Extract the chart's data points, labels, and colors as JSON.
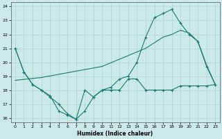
{
  "xlabel": "Humidex (Indice chaleur)",
  "bg_color": "#cce9e9",
  "grid_color": "#aad4d4",
  "line_color": "#1a7a6e",
  "xlim": [
    -0.5,
    23.5
  ],
  "ylim": [
    15.7,
    24.3
  ],
  "xticks": [
    0,
    1,
    2,
    3,
    4,
    5,
    6,
    7,
    8,
    9,
    10,
    11,
    12,
    13,
    14,
    15,
    16,
    17,
    18,
    19,
    20,
    21,
    22,
    23
  ],
  "yticks": [
    16,
    17,
    18,
    19,
    20,
    21,
    22,
    23,
    24
  ],
  "line1_x": [
    0,
    1,
    2,
    3,
    4,
    5,
    6,
    7,
    8,
    9,
    10,
    11,
    12,
    13,
    14,
    15,
    16,
    17,
    18,
    19,
    20,
    21,
    22,
    23
  ],
  "line1_y": [
    21.0,
    19.3,
    18.4,
    18.0,
    17.5,
    17.0,
    16.3,
    15.9,
    18.0,
    17.5,
    18.0,
    18.0,
    18.0,
    18.8,
    18.8,
    18.0,
    18.0,
    18.0,
    18.0,
    18.3,
    18.3,
    18.3,
    18.3,
    18.4
  ],
  "line2_x": [
    0,
    1,
    2,
    3,
    4,
    5,
    6,
    7,
    8,
    9,
    10,
    11,
    12,
    13,
    14,
    15,
    16,
    17,
    18,
    19,
    20,
    21,
    22,
    23
  ],
  "line2_y": [
    21.0,
    19.3,
    18.4,
    18.0,
    17.6,
    16.5,
    16.2,
    15.9,
    16.5,
    17.5,
    18.0,
    18.2,
    18.8,
    19.0,
    20.0,
    21.8,
    23.2,
    23.5,
    23.8,
    22.8,
    22.0,
    21.5,
    19.7,
    18.4
  ],
  "line3_x": [
    0,
    3,
    10,
    15,
    17,
    18,
    19,
    20,
    21,
    22,
    23
  ],
  "line3_y": [
    18.7,
    18.9,
    19.7,
    21.0,
    21.8,
    22.0,
    22.3,
    22.1,
    21.5,
    19.8,
    18.4
  ],
  "figsize": [
    3.2,
    2.0
  ],
  "dpi": 100
}
